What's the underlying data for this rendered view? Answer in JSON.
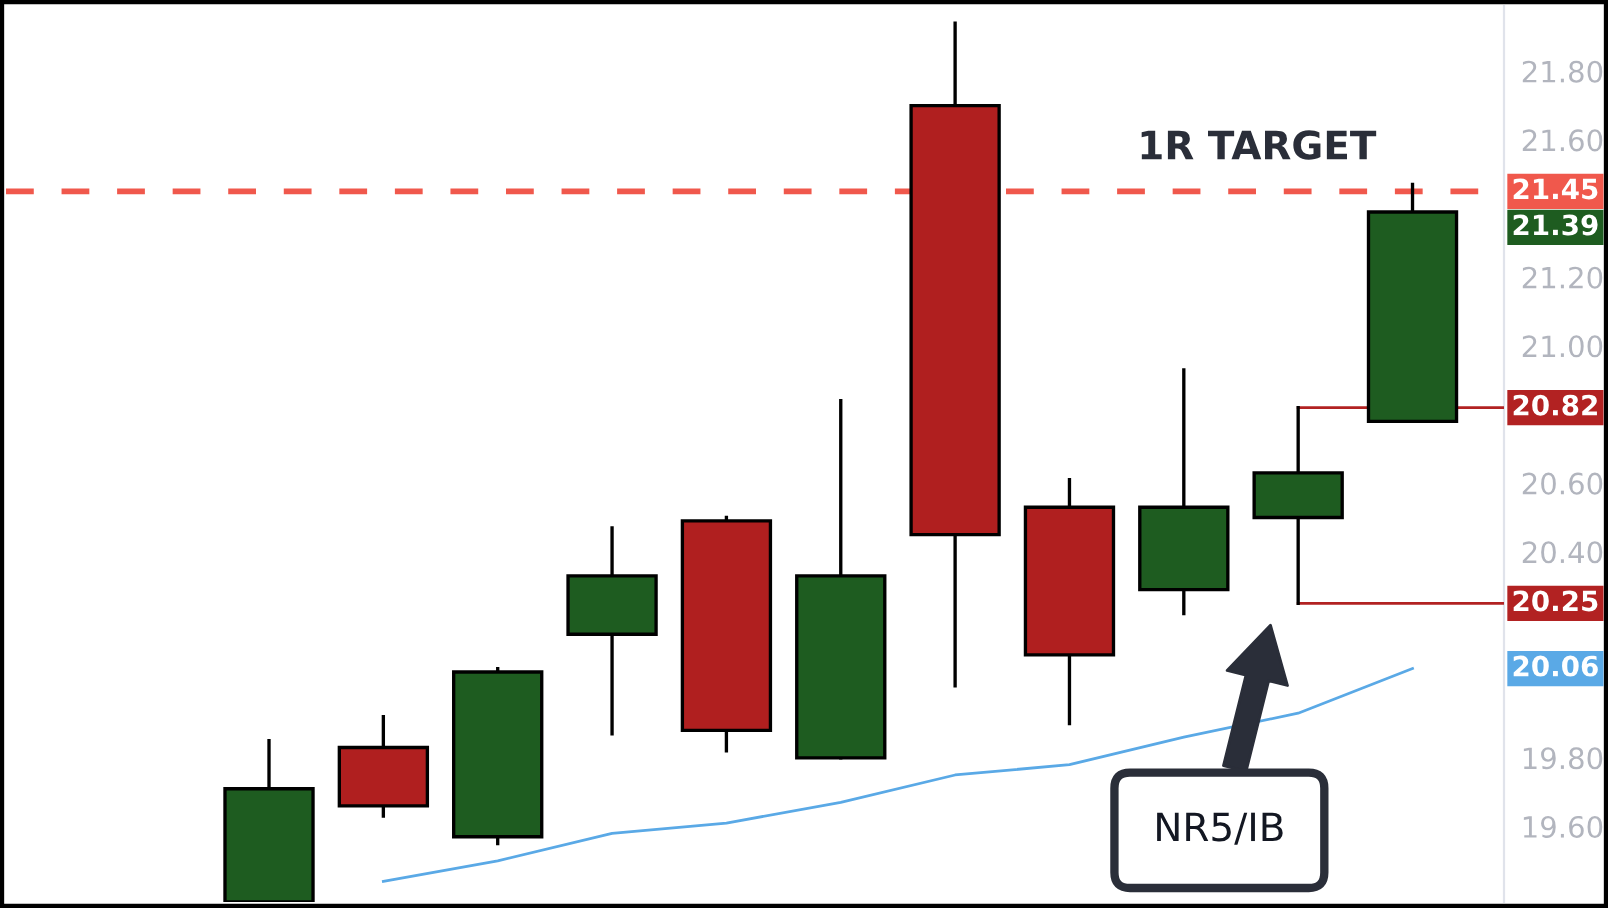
{
  "chart_data": {
    "type": "candlestick",
    "categories": [
      null,
      null,
      null,
      null,
      null,
      null,
      null,
      null,
      null,
      null,
      null
    ],
    "ohlc": [
      [
        19.38,
        19.85,
        19.38,
        19.71
      ],
      [
        19.83,
        19.92,
        19.63,
        19.66
      ],
      [
        19.57,
        20.06,
        19.55,
        20.05
      ],
      [
        20.16,
        20.47,
        19.87,
        20.33
      ],
      [
        20.49,
        20.5,
        19.82,
        19.88
      ],
      [
        19.8,
        20.84,
        19.8,
        20.33
      ],
      [
        21.7,
        21.94,
        20.01,
        20.45
      ],
      [
        20.53,
        20.61,
        19.9,
        20.1
      ],
      [
        20.29,
        20.93,
        20.22,
        20.53
      ],
      [
        20.5,
        20.82,
        20.25,
        20.63
      ],
      [
        20.78,
        21.47,
        20.78,
        21.39
      ]
    ],
    "colors": [
      "#1e5c20",
      "#b01f1f",
      "#1e5c20",
      "#1e5c20",
      "#b01f1f",
      "#1e5c20",
      "#b01f1f",
      "#b01f1f",
      "#1e5c20",
      "#1e5c20",
      "#1e5c20"
    ],
    "value_labels": [
      null,
      null,
      null,
      null,
      null,
      null,
      null,
      null,
      null,
      null,
      "21.39"
    ],
    "series": [
      {
        "type": "line",
        "color": "#5aa9e6",
        "values": [
          null,
          19.44,
          19.5,
          19.58,
          19.61,
          19.67,
          19.75,
          19.78,
          19.86,
          19.93,
          20.06
        ]
      }
    ],
    "ylim": [
      19.38,
      21.99
    ],
    "yticks": [
      {
        "value": 19.6,
        "label": "19.60"
      },
      {
        "value": 19.8,
        "label": "19.80"
      },
      {
        "value": 20.4,
        "label": "20.40"
      },
      {
        "value": 20.6,
        "label": "20.60"
      },
      {
        "value": 21.0,
        "label": "21.00"
      },
      {
        "value": 21.2,
        "label": "21.20"
      },
      {
        "value": 21.6,
        "label": "21.60"
      },
      {
        "value": 21.8,
        "label": "21.80"
      }
    ],
    "tick_labels": "y",
    "ref_lines": [
      {
        "axis": "y",
        "value": 21.45,
        "label": "21.45",
        "color": "#f0584c",
        "line_style": "dashed"
      },
      {
        "axis": "y",
        "value": 20.82,
        "label": "20.82",
        "color": "#b22222",
        "line_style": "solid"
      },
      {
        "axis": "y",
        "value": 20.25,
        "label": "20.25",
        "color": "#b22222",
        "line_style": "solid"
      }
    ],
    "annotations": [
      "1R TARGET",
      "NR5/IB",
      "20.06"
    ]
  }
}
